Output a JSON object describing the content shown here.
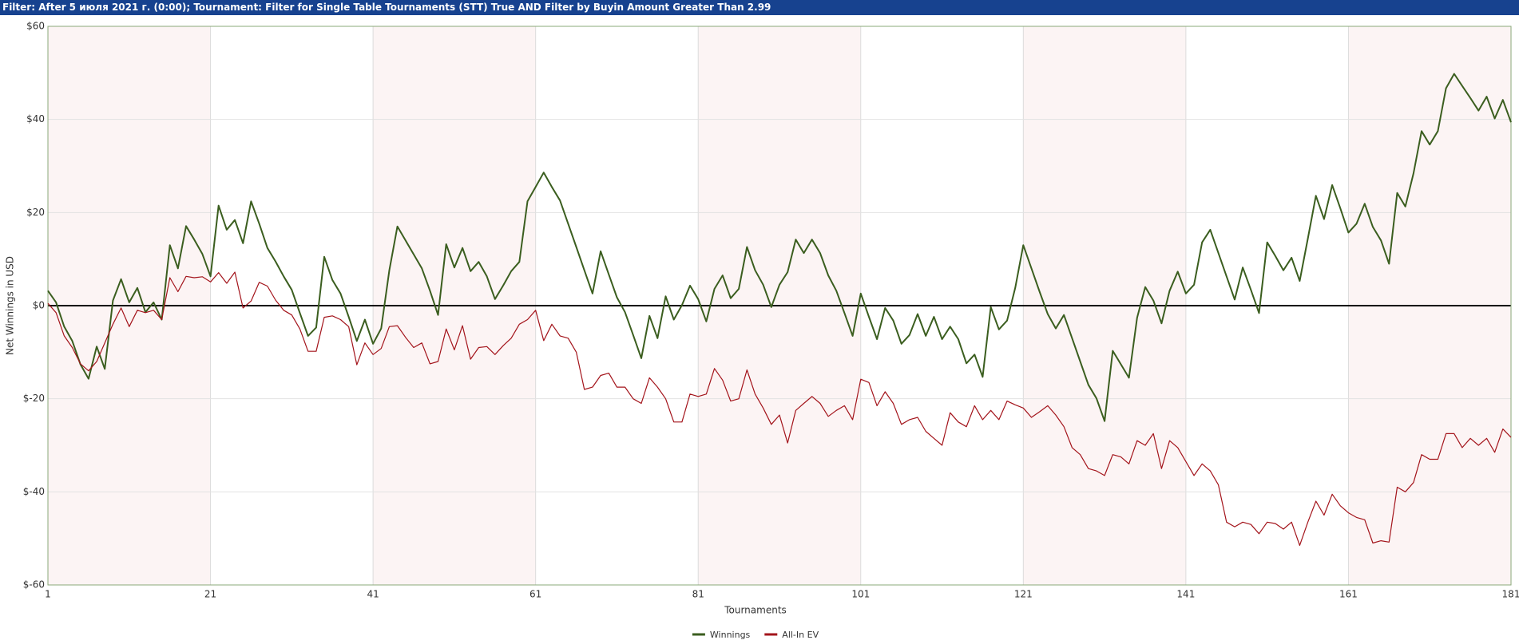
{
  "filter_bar": "Filter: After 5 июля 2021 г. (0:00); Tournament: Filter for Single Table Tournaments (STT) True AND Filter by Buyin Amount Greater Than 2.99",
  "chart_data": {
    "type": "line",
    "xlabel": "Tournaments",
    "ylabel": "Net Winnings in USD",
    "xlim": [
      1,
      181
    ],
    "xticks": [
      1,
      21,
      41,
      61,
      81,
      101,
      121,
      141,
      161,
      181
    ],
    "ylim": [
      -60,
      60
    ],
    "yticks": [
      {
        "value": -60,
        "label": "$-60"
      },
      {
        "value": -40,
        "label": "$-40"
      },
      {
        "value": -20,
        "label": "$-20"
      },
      {
        "value": 0,
        "label": "$0"
      },
      {
        "value": 20,
        "label": "$20"
      },
      {
        "value": 40,
        "label": "$40"
      },
      {
        "value": 60,
        "label": "$60"
      }
    ],
    "grid": true,
    "legend": "bottom",
    "x": [
      1,
      2,
      3,
      4,
      5,
      6,
      7,
      8,
      9,
      10,
      11,
      12,
      13,
      14,
      15,
      16,
      17,
      18,
      19,
      20,
      21,
      22,
      23,
      24,
      25,
      26,
      27,
      28,
      29,
      30,
      31,
      32,
      33,
      34,
      35,
      36,
      37,
      38,
      39,
      40,
      41,
      42,
      43,
      44,
      45,
      46,
      47,
      48,
      49,
      50,
      51,
      52,
      53,
      54,
      55,
      56,
      57,
      58,
      59,
      60,
      61,
      62,
      63,
      64,
      65,
      66,
      67,
      68,
      69,
      70,
      71,
      72,
      73,
      74,
      75,
      76,
      77,
      78,
      79,
      80,
      81,
      82,
      83,
      84,
      85,
      86,
      87,
      88,
      89,
      90,
      91,
      92,
      93,
      94,
      95,
      96,
      97,
      98,
      99,
      100,
      101,
      102,
      103,
      104,
      105,
      106,
      107,
      108,
      109,
      110,
      111,
      112,
      113,
      114,
      115,
      116,
      117,
      118,
      119,
      120,
      121,
      122,
      123,
      124,
      125,
      126,
      127,
      128,
      129,
      130,
      131,
      132,
      133,
      134,
      135,
      136,
      137,
      138,
      139,
      140,
      141,
      142,
      143,
      144,
      145,
      146,
      147,
      148,
      149,
      150,
      151,
      152,
      153,
      154,
      155,
      156,
      157,
      158,
      159,
      160,
      161,
      162,
      163,
      164,
      165,
      166,
      167,
      168,
      169,
      170,
      171,
      172,
      173,
      174,
      175,
      176,
      177,
      178,
      179,
      180,
      181
    ],
    "series": [
      {
        "name": "Winnings",
        "color": "#3b5e1f",
        "width": 2,
        "values": [
          3.2,
          0.7,
          -4.5,
          -7.6,
          -12.6,
          -15.7,
          -8.8,
          -13.6,
          1.1,
          5.7,
          0.7,
          3.8,
          -1.4,
          0.7,
          -3,
          13,
          8,
          17.1,
          14.2,
          11.1,
          6.3,
          21.5,
          16.3,
          18.4,
          13.4,
          22.4,
          17.6,
          12.4,
          9.5,
          6.3,
          3.4,
          -1.6,
          -6.5,
          -4.7,
          10.5,
          5.5,
          2.6,
          -2.4,
          -7.6,
          -3,
          -8.2,
          -4.9,
          7.6,
          17,
          14,
          11,
          8,
          3.2,
          -2,
          13.2,
          8.2,
          12.4,
          7.4,
          9.4,
          6.3,
          1.4,
          4.3,
          7.4,
          9.4,
          22.4,
          25.5,
          28.6,
          25.5,
          22.6,
          17.6,
          12.6,
          7.6,
          2.6,
          11.7,
          6.7,
          1.8,
          -1.4,
          -6.3,
          -11.3,
          -2.2,
          -7,
          2,
          -3,
          0.1,
          4.3,
          1.4,
          -3.4,
          3.6,
          6.5,
          1.6,
          3.6,
          12.6,
          7.6,
          4.5,
          -0.3,
          4.5,
          7.2,
          14.2,
          11.3,
          14.2,
          11.3,
          6.5,
          3.2,
          -1.6,
          -6.5,
          2.6,
          -2.4,
          -7.2,
          -0.5,
          -3.2,
          -8.2,
          -6.3,
          -1.8,
          -6.5,
          -2.4,
          -7.2,
          -4.5,
          -7.2,
          -12.4,
          -10.5,
          -15.3,
          -0.3,
          -5.1,
          -3.2,
          3.8,
          13,
          8,
          3,
          -1.8,
          -4.9,
          -2,
          -7,
          -12,
          -17,
          -19.9,
          -24.8,
          -9.7,
          -12.6,
          -15.5,
          -2.6,
          4,
          1.1,
          -3.8,
          3.2,
          7.3,
          2.6,
          4.5,
          13.6,
          16.3,
          11.3,
          6.3,
          1.3,
          8.2,
          3.4,
          -1.6,
          13.6,
          10.7,
          7.6,
          10.3,
          5.3,
          14.4,
          23.6,
          18.6,
          25.9,
          20.9,
          15.7,
          17.6,
          21.9,
          16.9,
          14,
          9,
          24.2,
          21.3,
          28.4,
          37.5,
          34.6,
          37.5,
          46.7,
          49.8,
          47.2,
          44.6,
          41.9,
          44.9,
          40.2,
          44.2,
          39.4
        ]
      },
      {
        "name": "All-In EV",
        "color": "#a3141b",
        "width": 1.2,
        "values": [
          0.5,
          -1.5,
          -6.5,
          -9,
          -12.5,
          -14,
          -12,
          -8,
          -4,
          -0.5,
          -4.5,
          -1,
          -1.5,
          -1,
          -3,
          6,
          3,
          6.3,
          6,
          6.2,
          5.1,
          7.1,
          4.8,
          7.2,
          -0.5,
          1,
          5,
          4.2,
          1.2,
          -1,
          -2,
          -5,
          -9.8,
          -9.8,
          -2.5,
          -2.2,
          -3,
          -4.5,
          -12.7,
          -8,
          -10.5,
          -9.2,
          -4.5,
          -4.3,
          -6.8,
          -9,
          -8,
          -12.5,
          -12,
          -5,
          -9.5,
          -4.3,
          -11.5,
          -9,
          -8.8,
          -10.5,
          -8.6,
          -7,
          -4,
          -3,
          -1,
          -7.5,
          -4,
          -6.5,
          -7,
          -10,
          -18,
          -17.5,
          -15,
          -14.5,
          -17.5,
          -17.5,
          -20,
          -21,
          -15.5,
          -17.5,
          -20,
          -25,
          -25,
          -19,
          -19.5,
          -19,
          -13.5,
          -16,
          -20.5,
          -20,
          -13.8,
          -19,
          -22,
          -25.5,
          -23.5,
          -29.5,
          -22.5,
          -21,
          -19.5,
          -21,
          -23.8,
          -22.5,
          -21.5,
          -24.5,
          -15.8,
          -16.5,
          -21.5,
          -18.5,
          -21,
          -25.5,
          -24.5,
          -24,
          -27,
          -28.5,
          -30,
          -23,
          -25,
          -26,
          -21.5,
          -24.5,
          -22.5,
          -24.5,
          -20.5,
          -21.3,
          -22,
          -24,
          -22.8,
          -21.5,
          -23.5,
          -26,
          -30.5,
          -32,
          -35,
          -35.5,
          -36.5,
          -32,
          -32.5,
          -34,
          -29,
          -30,
          -27.5,
          -35,
          -29,
          -30.5,
          -33.5,
          -36.5,
          -34,
          -35.5,
          -38.5,
          -46.5,
          -47.5,
          -46.5,
          -47,
          -49,
          -46.5,
          -46.8,
          -48,
          -46.5,
          -51.5,
          -46.5,
          -42,
          -45,
          -40.5,
          -43,
          -44.5,
          -45.5,
          -46,
          -51,
          -50.5,
          -50.8,
          -39,
          -40,
          -38,
          -32,
          -33,
          -33,
          -27.5,
          -27.5,
          -30.5,
          -28.5,
          -30,
          -28.5,
          -31.5,
          -26.5,
          -28.3
        ]
      }
    ]
  }
}
